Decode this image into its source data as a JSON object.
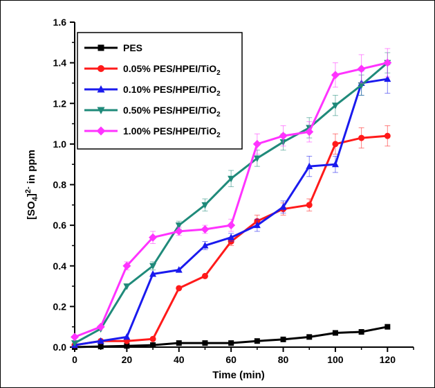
{
  "chart_data": {
    "type": "line",
    "xlabel": "Time (min)",
    "ylabel_main": "[SO",
    "ylabel_sub": "4",
    "ylabel_sup": "2-",
    "ylabel_rest": " in ppm",
    "xlim": [
      0,
      130
    ],
    "ylim": [
      0,
      1.6
    ],
    "xticks": [
      0,
      20,
      40,
      60,
      80,
      100,
      120
    ],
    "yticks": [
      0.0,
      0.2,
      0.4,
      0.6,
      0.8,
      1.0,
      1.2,
      1.4,
      1.6
    ],
    "legend_position": "top-left",
    "grid": false,
    "x": [
      0,
      10,
      20,
      30,
      40,
      50,
      60,
      70,
      80,
      90,
      100,
      110,
      120
    ],
    "series": [
      {
        "name": "PES",
        "color": "#000000",
        "marker": "square",
        "values": [
          0.0,
          0.003,
          0.006,
          0.01,
          0.02,
          0.02,
          0.02,
          0.03,
          0.038,
          0.05,
          0.07,
          0.075,
          0.1
        ],
        "errors": [
          0,
          0,
          0,
          0,
          0,
          0,
          0,
          0,
          0,
          0,
          0,
          0,
          0
        ]
      },
      {
        "name": "0.05% PES/HPEI/TiO",
        "name_sub": "2",
        "color": "#ff1a1a",
        "marker": "circle",
        "values": [
          0.01,
          0.03,
          0.03,
          0.04,
          0.29,
          0.35,
          0.52,
          0.62,
          0.68,
          0.7,
          1.0,
          1.03,
          1.04
        ],
        "errors": [
          0,
          0,
          0,
          0,
          0,
          0,
          0.02,
          0.03,
          0.03,
          0.03,
          0.05,
          0.05,
          0.05
        ]
      },
      {
        "name": "0.10% PES/HPEI/TiO",
        "name_sub": "2",
        "color": "#1a1aee",
        "marker": "triangle-up",
        "values": [
          0.01,
          0.03,
          0.05,
          0.36,
          0.38,
          0.5,
          0.54,
          0.6,
          0.69,
          0.89,
          0.9,
          1.3,
          1.32
        ],
        "errors": [
          0,
          0,
          0,
          0,
          0,
          0.02,
          0.02,
          0.03,
          0.03,
          0.05,
          0.04,
          0.06,
          0.07
        ]
      },
      {
        "name": "0.50% PES/HPEI/TiO",
        "name_sub": "2",
        "color": "#1f8a7a",
        "marker": "triangle-down",
        "values": [
          0.02,
          0.09,
          0.3,
          0.4,
          0.6,
          0.7,
          0.83,
          0.93,
          1.01,
          1.08,
          1.19,
          1.29,
          1.4
        ],
        "errors": [
          0,
          0,
          0,
          0.02,
          0.02,
          0.03,
          0.04,
          0.04,
          0.04,
          0.05,
          0.05,
          0.05,
          0.05
        ]
      },
      {
        "name": "1.00% PES/HPEI/TiO",
        "name_sub": "2",
        "color": "#ff33ff",
        "marker": "diamond",
        "values": [
          0.05,
          0.1,
          0.4,
          0.54,
          0.57,
          0.58,
          0.6,
          1.0,
          1.04,
          1.06,
          1.34,
          1.37,
          1.4
        ],
        "errors": [
          0,
          0,
          0.02,
          0.03,
          0.02,
          0.02,
          0.03,
          0.05,
          0.05,
          0.05,
          0.06,
          0.07,
          0.07
        ]
      }
    ]
  }
}
